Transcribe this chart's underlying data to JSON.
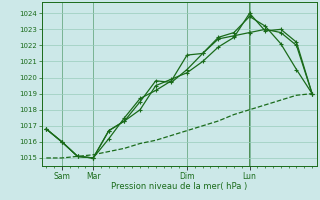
{
  "background_color": "#cce8e8",
  "grid_color": "#99ccbb",
  "line_color": "#1a6b1a",
  "xlabel": "Pression niveau de la mer( hPa )",
  "ylim": [
    1014.5,
    1024.7
  ],
  "yticks": [
    1015,
    1016,
    1017,
    1018,
    1019,
    1020,
    1021,
    1022,
    1023,
    1024
  ],
  "day_labels": [
    "Sam",
    "Mar",
    "Dim",
    "Lun"
  ],
  "day_positions": [
    1,
    3,
    9,
    13
  ],
  "total_points": 18,
  "xlim": [
    -0.3,
    17.3
  ],
  "series1_x": [
    0,
    1,
    2,
    3,
    4,
    5,
    6,
    7,
    8,
    9,
    10,
    11,
    12,
    13,
    14,
    15,
    16,
    17
  ],
  "series1": [
    1016.8,
    1016.0,
    1015.1,
    1015.0,
    1016.7,
    1017.3,
    1018.0,
    1019.5,
    1019.9,
    1020.3,
    1021.0,
    1021.9,
    1022.5,
    1024.0,
    1022.9,
    1023.0,
    1022.2,
    1019.0
  ],
  "series2": [
    1016.8,
    1016.0,
    1015.1,
    1015.0,
    1016.2,
    1017.5,
    1018.7,
    1019.2,
    1019.8,
    1021.4,
    1021.5,
    1022.5,
    1022.8,
    1023.8,
    1023.2,
    1022.1,
    1020.5,
    1019.0
  ],
  "series3": [
    1015.0,
    1015.0,
    1015.1,
    1015.2,
    1015.4,
    1015.6,
    1015.9,
    1016.1,
    1016.4,
    1016.7,
    1017.0,
    1017.3,
    1017.7,
    1018.0,
    1018.3,
    1018.6,
    1018.9,
    1019.0
  ],
  "series4": [
    1016.8,
    1016.0,
    1015.1,
    1015.0,
    1016.7,
    1017.3,
    1018.5,
    1019.8,
    1019.7,
    1020.5,
    1021.5,
    1022.4,
    1022.6,
    1022.8,
    1023.0,
    1022.8,
    1022.0,
    1019.0
  ],
  "vline_positions": [
    1,
    3,
    9,
    13
  ],
  "vline_thick": [
    13
  ]
}
